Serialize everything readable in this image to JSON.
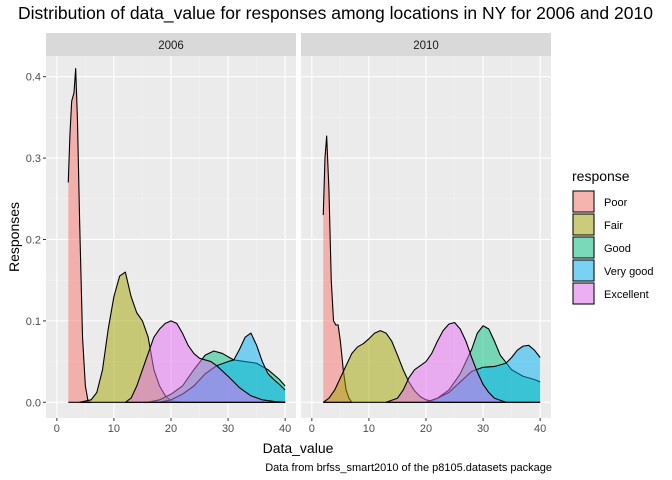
{
  "chart_data": {
    "type": "area",
    "subtype": "density",
    "title": "Distribution of data_value for responses among locations in NY for 2006 and 2010",
    "xlabel": "Data_value",
    "ylabel": "Responses",
    "caption": "Data from brfss_smart2010 of the p8105.datasets package",
    "xlim": [
      0,
      40
    ],
    "ylim": [
      0,
      0.41
    ],
    "x_ticks": [
      0,
      10,
      20,
      30,
      40
    ],
    "y_ticks": [
      0.0,
      0.1,
      0.2,
      0.3,
      0.4
    ],
    "x_tick_labels": [
      "0",
      "10",
      "20",
      "30",
      "40"
    ],
    "y_tick_labels": [
      "0.0",
      "0.1",
      "0.2",
      "0.3",
      "0.4"
    ],
    "legend": {
      "title": "response",
      "position": "right",
      "entries": [
        "Poor",
        "Fair",
        "Good",
        "Very good",
        "Excellent"
      ]
    },
    "colors": {
      "Poor": "#F8766D",
      "Fair": "#A3A500",
      "Good": "#00BF7D",
      "Very good": "#00B0F6",
      "Excellent": "#E76BF3"
    },
    "panels": [
      {
        "label": "2006",
        "series": [
          {
            "name": "Poor",
            "points": [
              [
                2,
                0.27
              ],
              [
                2.3,
                0.33
              ],
              [
                2.6,
                0.37
              ],
              [
                3.0,
                0.38
              ],
              [
                3.3,
                0.41
              ],
              [
                3.6,
                0.35
              ],
              [
                4.0,
                0.22
              ],
              [
                4.5,
                0.08
              ],
              [
                5.0,
                0.02
              ],
              [
                5.5,
                0.0
              ],
              [
                6,
                0.0
              ]
            ]
          },
          {
            "name": "Fair",
            "points": [
              [
                4,
                0.0
              ],
              [
                6,
                0.003
              ],
              [
                7,
                0.012
              ],
              [
                8,
                0.04
              ],
              [
                9,
                0.09
              ],
              [
                10,
                0.13
              ],
              [
                11,
                0.155
              ],
              [
                12,
                0.16
              ],
              [
                13,
                0.13
              ],
              [
                14,
                0.11
              ],
              [
                15,
                0.1
              ],
              [
                16,
                0.08
              ],
              [
                17,
                0.04
              ],
              [
                18,
                0.02
              ],
              [
                19,
                0.008
              ],
              [
                20,
                0.002
              ],
              [
                22,
                0.0
              ]
            ]
          },
          {
            "name": "Good",
            "points": [
              [
                16,
                0.0
              ],
              [
                18,
                0.003
              ],
              [
                20,
                0.01
              ],
              [
                22,
                0.02
              ],
              [
                24,
                0.04
              ],
              [
                26,
                0.058
              ],
              [
                27.5,
                0.063
              ],
              [
                29,
                0.06
              ],
              [
                31,
                0.052
              ],
              [
                33,
                0.05
              ],
              [
                35,
                0.048
              ],
              [
                37,
                0.04
              ],
              [
                39,
                0.028
              ],
              [
                40,
                0.02
              ]
            ]
          },
          {
            "name": "Very good",
            "points": [
              [
                18,
                0.0
              ],
              [
                20,
                0.003
              ],
              [
                22,
                0.01
              ],
              [
                24,
                0.02
              ],
              [
                26,
                0.035
              ],
              [
                28,
                0.045
              ],
              [
                30,
                0.05
              ],
              [
                31,
                0.052
              ],
              [
                32,
                0.065
              ],
              [
                33,
                0.08
              ],
              [
                34,
                0.085
              ],
              [
                35,
                0.07
              ],
              [
                36,
                0.05
              ],
              [
                37,
                0.035
              ],
              [
                38,
                0.028
              ],
              [
                39,
                0.022
              ],
              [
                40,
                0.015
              ]
            ]
          },
          {
            "name": "Excellent",
            "points": [
              [
                12,
                0.0
              ],
              [
                13,
                0.005
              ],
              [
                14,
                0.02
              ],
              [
                15,
                0.04
              ],
              [
                16,
                0.06
              ],
              [
                17,
                0.08
              ],
              [
                18,
                0.09
              ],
              [
                19,
                0.097
              ],
              [
                20,
                0.1
              ],
              [
                21,
                0.097
              ],
              [
                22,
                0.085
              ],
              [
                23,
                0.07
              ],
              [
                24,
                0.06
              ],
              [
                25,
                0.054
              ],
              [
                26,
                0.052
              ],
              [
                27,
                0.05
              ],
              [
                28,
                0.045
              ],
              [
                30,
                0.032
              ],
              [
                32,
                0.018
              ],
              [
                34,
                0.008
              ],
              [
                36,
                0.003
              ],
              [
                38,
                0.001
              ],
              [
                40,
                0.0
              ]
            ]
          }
        ]
      },
      {
        "label": "2010",
        "series": [
          {
            "name": "Poor",
            "points": [
              [
                2,
                0.23
              ],
              [
                2.3,
                0.3
              ],
              [
                2.6,
                0.327
              ],
              [
                3.0,
                0.26
              ],
              [
                3.4,
                0.15
              ],
              [
                3.8,
                0.1
              ],
              [
                4.2,
                0.095
              ],
              [
                4.6,
                0.095
              ],
              [
                5.0,
                0.075
              ],
              [
                5.5,
                0.04
              ],
              [
                6.0,
                0.015
              ],
              [
                6.5,
                0.005
              ],
              [
                7,
                0.0
              ]
            ]
          },
          {
            "name": "Fair",
            "points": [
              [
                2,
                0.0
              ],
              [
                3,
                0.005
              ],
              [
                4,
                0.015
              ],
              [
                5,
                0.03
              ],
              [
                6,
                0.045
              ],
              [
                7,
                0.06
              ],
              [
                8,
                0.068
              ],
              [
                9,
                0.072
              ],
              [
                10,
                0.078
              ],
              [
                11,
                0.085
              ],
              [
                12,
                0.088
              ],
              [
                13,
                0.085
              ],
              [
                14,
                0.075
              ],
              [
                15,
                0.058
              ],
              [
                16,
                0.04
              ],
              [
                17,
                0.025
              ],
              [
                18,
                0.014
              ],
              [
                19,
                0.007
              ],
              [
                20,
                0.003
              ],
              [
                22,
                0.0
              ]
            ]
          },
          {
            "name": "Good",
            "points": [
              [
                20,
                0.0
              ],
              [
                22,
                0.005
              ],
              [
                24,
                0.015
              ],
              [
                26,
                0.035
              ],
              [
                28,
                0.065
              ],
              [
                29,
                0.085
              ],
              [
                30,
                0.094
              ],
              [
                31,
                0.09
              ],
              [
                32,
                0.075
              ],
              [
                33,
                0.058
              ],
              [
                35,
                0.04
              ],
              [
                37,
                0.032
              ],
              [
                39,
                0.028
              ],
              [
                40,
                0.025
              ]
            ]
          },
          {
            "name": "Very good",
            "points": [
              [
                20,
                0.0
              ],
              [
                22,
                0.005
              ],
              [
                24,
                0.012
              ],
              [
                26,
                0.025
              ],
              [
                28,
                0.038
              ],
              [
                30,
                0.043
              ],
              [
                32,
                0.044
              ],
              [
                34,
                0.048
              ],
              [
                35,
                0.055
              ],
              [
                36,
                0.064
              ],
              [
                37,
                0.069
              ],
              [
                38,
                0.07
              ],
              [
                39,
                0.064
              ],
              [
                40,
                0.055
              ]
            ]
          },
          {
            "name": "Excellent",
            "points": [
              [
                13,
                0.0
              ],
              [
                15,
                0.005
              ],
              [
                16,
                0.015
              ],
              [
                17,
                0.03
              ],
              [
                18,
                0.04
              ],
              [
                19,
                0.045
              ],
              [
                20,
                0.05
              ],
              [
                21,
                0.06
              ],
              [
                22,
                0.075
              ],
              [
                23,
                0.088
              ],
              [
                24,
                0.096
              ],
              [
                25,
                0.098
              ],
              [
                26,
                0.09
              ],
              [
                27,
                0.075
              ],
              [
                28,
                0.055
              ],
              [
                29,
                0.037
              ],
              [
                30,
                0.022
              ],
              [
                31,
                0.012
              ],
              [
                32,
                0.005
              ],
              [
                34,
                0.0
              ]
            ]
          }
        ]
      }
    ]
  }
}
